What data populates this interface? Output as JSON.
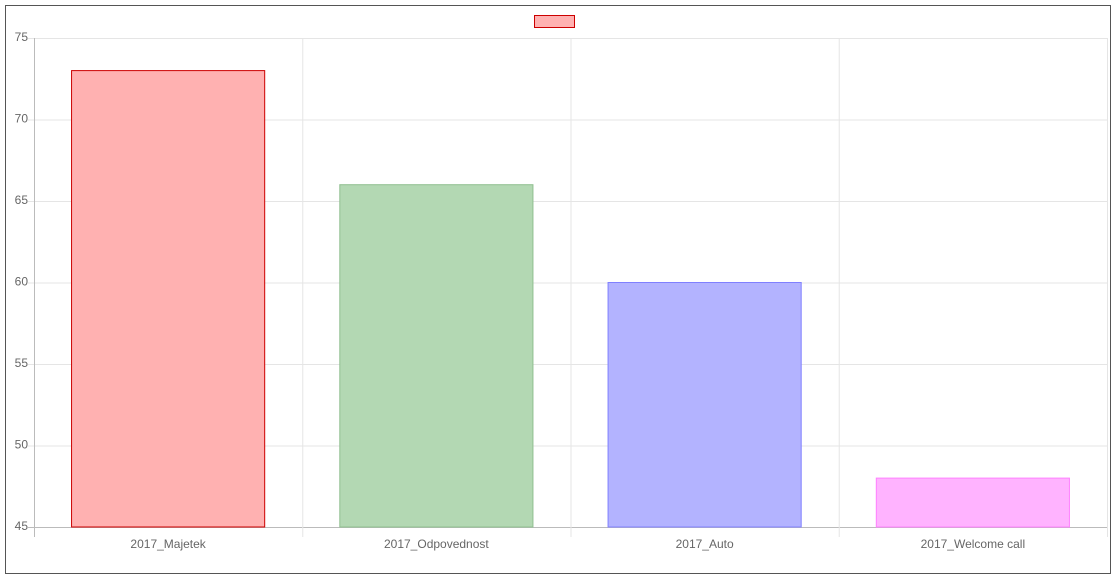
{
  "chart_data": {
    "type": "bar",
    "categories": [
      "2017_Majetek",
      "2017_Odpovednost",
      "2017_Auto",
      "2017_Welcome call"
    ],
    "values": [
      73,
      66,
      60,
      48
    ],
    "colors": [
      "#ffb1b1",
      "#b3d8b3",
      "#b3b3ff",
      "#ffb3ff"
    ],
    "border_colors": [
      "#cc0000",
      "#8fbf8f",
      "#8080ff",
      "#ff80ff"
    ],
    "ylim": [
      45,
      75
    ],
    "yticks": [
      45,
      50,
      55,
      60,
      65,
      70,
      75
    ],
    "grid": true
  }
}
